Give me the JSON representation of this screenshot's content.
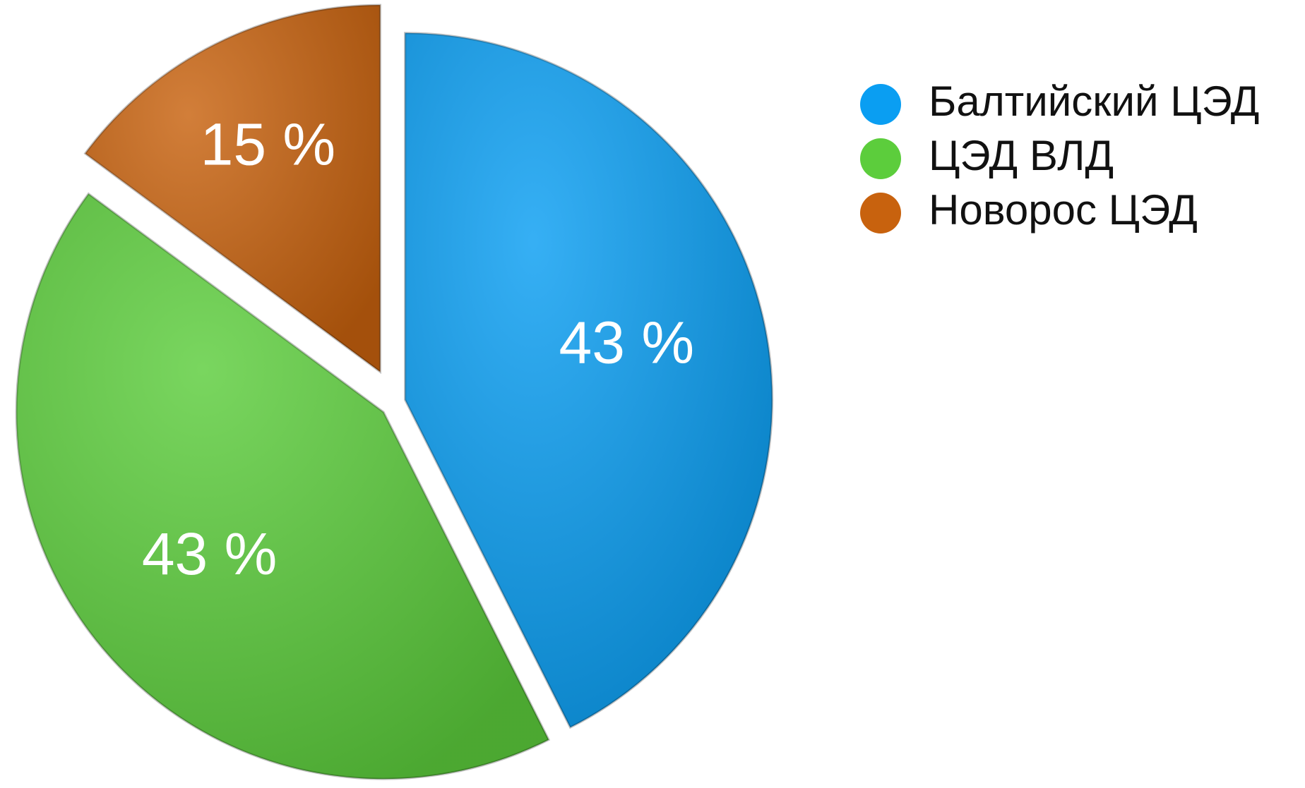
{
  "chart_data": {
    "type": "pie",
    "categories": [
      "Балтийский ЦЭД",
      "ЦЭД ВЛД",
      "Новорос ЦЭД"
    ],
    "values": [
      43,
      43,
      15
    ],
    "value_labels": [
      "43 %",
      "43 %",
      "15 %"
    ],
    "colors": [
      "#0a9ef2",
      "#5ccd3c",
      "#c8620e"
    ],
    "legend": "right"
  }
}
